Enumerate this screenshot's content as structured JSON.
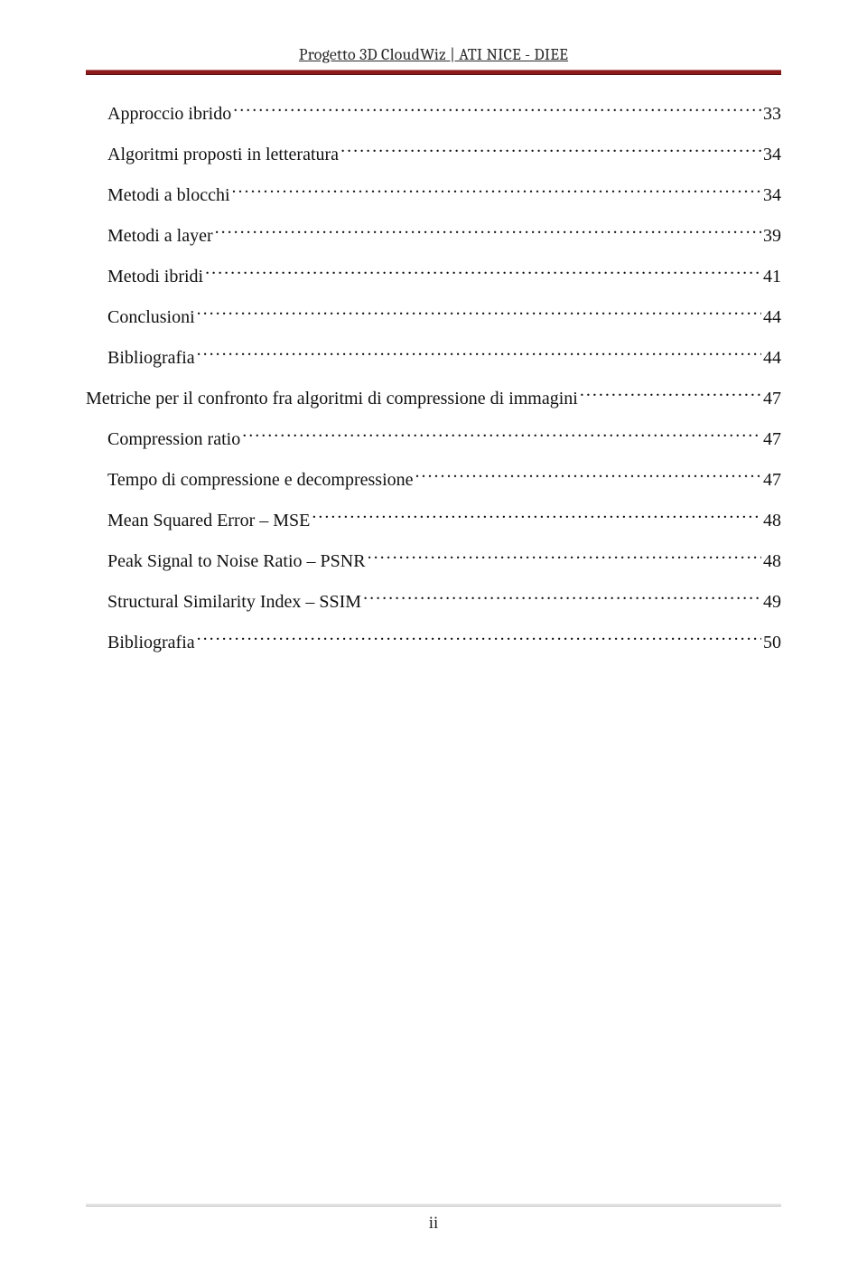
{
  "header": {
    "text": "Progetto 3D CloudWiz | ATI NICE - DIEE",
    "rule_color": "#8b1a1a"
  },
  "toc": {
    "font_size": 20,
    "entries": [
      {
        "level": 1,
        "label": "Approccio ibrido",
        "page": "33"
      },
      {
        "level": 1,
        "label": "Algoritmi proposti in letteratura",
        "page": "34"
      },
      {
        "level": 1,
        "label": "Metodi a blocchi",
        "page": "34"
      },
      {
        "level": 1,
        "label": "Metodi a layer",
        "page": "39"
      },
      {
        "level": 1,
        "label": "Metodi ibridi",
        "page": "41"
      },
      {
        "level": 1,
        "label": "Conclusioni",
        "page": "44"
      },
      {
        "level": 1,
        "label": "Bibliografia",
        "page": "44"
      },
      {
        "level": 0,
        "label": "Metriche per il confronto fra algoritmi di compressione di immagini",
        "page": "47"
      },
      {
        "level": 1,
        "label": "Compression ratio",
        "page": "47"
      },
      {
        "level": 1,
        "label": "Tempo di compressione e decompressione",
        "page": "47"
      },
      {
        "level": 1,
        "label": "Mean Squared Error – MSE",
        "page": "48"
      },
      {
        "level": 1,
        "label": "Peak Signal to Noise Ratio – PSNR",
        "page": "48"
      },
      {
        "level": 1,
        "label": "Structural Similarity Index – SSIM",
        "page": "49"
      },
      {
        "level": 1,
        "label": "Bibliografia",
        "page": "50"
      }
    ]
  },
  "footer": {
    "page_number": "ii"
  },
  "colors": {
    "text": "#111111",
    "header_underline": "#2a2a2a",
    "rule_dark": "#8b1a1a",
    "rule_light": "#c08080",
    "footer_rule": "#b0b0b0",
    "background": "#ffffff"
  }
}
